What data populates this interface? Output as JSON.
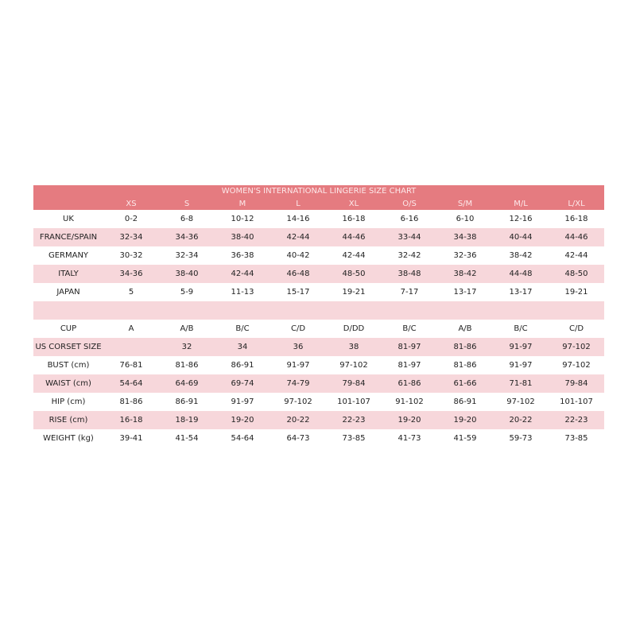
{
  "title": "WOMEN'S INTERNATIONAL LINGERIE SIZE CHART",
  "colors": {
    "header": "#e57b80",
    "stripe": "#f7d7db"
  },
  "sizes": [
    "XS",
    "S",
    "M",
    "L",
    "XL",
    "O/S",
    "S/M",
    "M/L",
    "L/XL"
  ],
  "rows": [
    {
      "label": "UK",
      "values": [
        "0-2",
        "6-8",
        "10-12",
        "14-16",
        "16-18",
        "6-16",
        "6-10",
        "12-16",
        "16-18"
      ]
    },
    {
      "label": "FRANCE/SPAIN",
      "values": [
        "32-34",
        "34-36",
        "38-40",
        "42-44",
        "44-46",
        "33-44",
        "34-38",
        "40-44",
        "44-46"
      ]
    },
    {
      "label": "GERMANY",
      "values": [
        "30-32",
        "32-34",
        "36-38",
        "40-42",
        "42-44",
        "32-42",
        "32-36",
        "38-42",
        "42-44"
      ]
    },
    {
      "label": "ITALY",
      "values": [
        "34-36",
        "38-40",
        "42-44",
        "46-48",
        "48-50",
        "38-48",
        "38-42",
        "44-48",
        "48-50"
      ]
    },
    {
      "label": "JAPAN",
      "values": [
        "5",
        "5-9",
        "11-13",
        "15-17",
        "19-21",
        "7-17",
        "13-17",
        "13-17",
        "19-21"
      ]
    },
    {
      "label": "",
      "values": [
        "",
        "",
        "",
        "",
        "",
        "",
        "",
        "",
        ""
      ]
    },
    {
      "label": "CUP",
      "values": [
        "A",
        "A/B",
        "B/C",
        "C/D",
        "D/DD",
        "B/C",
        "A/B",
        "B/C",
        "C/D"
      ]
    },
    {
      "label": "US CORSET SIZE",
      "values": [
        "",
        "32",
        "34",
        "36",
        "38",
        "81-97",
        "81-86",
        "91-97",
        "97-102"
      ]
    },
    {
      "label": "BUST (cm)",
      "values": [
        "76-81",
        "81-86",
        "86-91",
        "91-97",
        "97-102",
        "81-97",
        "81-86",
        "91-97",
        "97-102"
      ]
    },
    {
      "label": "WAIST (cm)",
      "values": [
        "54-64",
        "64-69",
        "69-74",
        "74-79",
        "79-84",
        "61-86",
        "61-66",
        "71-81",
        "79-84"
      ]
    },
    {
      "label": "HIP (cm)",
      "values": [
        "81-86",
        "86-91",
        "91-97",
        "97-102",
        "101-107",
        "91-102",
        "86-91",
        "97-102",
        "101-107"
      ]
    },
    {
      "label": "RISE (cm)",
      "values": [
        "16-18",
        "18-19",
        "19-20",
        "20-22",
        "22-23",
        "19-20",
        "19-20",
        "20-22",
        "22-23"
      ]
    },
    {
      "label": "WEIGHT (kg)",
      "values": [
        "39-41",
        "41-54",
        "54-64",
        "64-73",
        "73-85",
        "41-73",
        "41-59",
        "59-73",
        "73-85"
      ]
    }
  ]
}
